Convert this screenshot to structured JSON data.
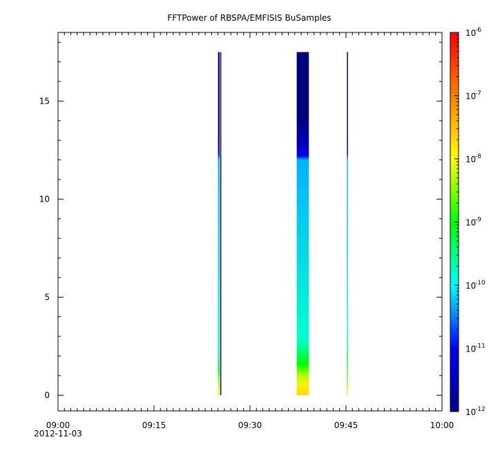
{
  "chart_data": {
    "type": "heatmap",
    "title": "FFTPower of RBSPA/EMFISIS  BuSamples",
    "xlabel": "",
    "ylabel": "",
    "x_axis": {
      "range_minutes": [
        0,
        60
      ],
      "ticks": [
        {
          "minute": 0,
          "label": "09:00"
        },
        {
          "minute": 15,
          "label": "09:15"
        },
        {
          "minute": 30,
          "label": "09:30"
        },
        {
          "minute": 45,
          "label": "09:45"
        },
        {
          "minute": 60,
          "label": "10:00"
        }
      ],
      "date_label": "2012-11-03"
    },
    "y_axis": {
      "range": [
        -0.8,
        18.5
      ],
      "ticks": [
        0,
        5,
        10,
        15
      ]
    },
    "colorbar": {
      "scale": "log",
      "range": [
        1e-12,
        1e-06
      ],
      "tick_labels": [
        {
          "exp": -12,
          "base": "10",
          "power": "-12"
        },
        {
          "exp": -11,
          "base": "10",
          "power": "-11"
        },
        {
          "exp": -10,
          "base": "10",
          "power": "-10"
        },
        {
          "exp": -9,
          "base": "10",
          "power": "-9"
        },
        {
          "exp": -8,
          "base": "10",
          "power": "-8"
        },
        {
          "exp": -7,
          "base": "10",
          "power": "-7"
        },
        {
          "exp": -6,
          "base": "10",
          "power": "-6"
        }
      ],
      "colormap": [
        "#00007f",
        "#0000ff",
        "#00ffff",
        "#00ff00",
        "#ffff00",
        "#ff7f00",
        "#ff0000"
      ]
    },
    "data_intervals": [
      {
        "start_minute": 25.0,
        "end_minute": 25.25,
        "y_max": 17.5,
        "profile": [
          {
            "y": 0.0,
            "log_power": -8.0
          },
          {
            "y": 0.6,
            "log_power": -8.3
          },
          {
            "y": 1.2,
            "log_power": -9.0
          },
          {
            "y": 2.5,
            "log_power": -9.7
          },
          {
            "y": 12.0,
            "log_power": -10.3
          },
          {
            "y": 12.3,
            "log_power": -11.3
          },
          {
            "y": 13.0,
            "log_power": -12.0
          },
          {
            "y": 17.5,
            "log_power": -12.0
          }
        ]
      },
      {
        "start_minute": 25.35,
        "end_minute": 25.5,
        "y_max": 17.5,
        "profile": [
          {
            "y": 0.0,
            "log_power": -12.0
          },
          {
            "y": 17.5,
            "log_power": -12.0
          }
        ]
      },
      {
        "start_minute": 37.3,
        "end_minute": 39.2,
        "y_max": 17.5,
        "profile": [
          {
            "y": 0.0,
            "log_power": -7.7
          },
          {
            "y": 0.5,
            "log_power": -7.9
          },
          {
            "y": 1.0,
            "log_power": -8.3
          },
          {
            "y": 1.6,
            "log_power": -9.0
          },
          {
            "y": 2.8,
            "log_power": -9.8
          },
          {
            "y": 12.0,
            "log_power": -10.3
          },
          {
            "y": 12.2,
            "log_power": -11.2
          },
          {
            "y": 13.0,
            "log_power": -11.6
          },
          {
            "y": 14.0,
            "log_power": -12.0
          },
          {
            "y": 17.5,
            "log_power": -12.0
          }
        ]
      },
      {
        "start_minute": 45.15,
        "end_minute": 45.3,
        "y_max": 17.5,
        "profile": [
          {
            "y": 0.0,
            "log_power": -8.0
          },
          {
            "y": 0.7,
            "log_power": -8.5
          },
          {
            "y": 1.8,
            "log_power": -9.3
          },
          {
            "y": 3.0,
            "log_power": -9.8
          },
          {
            "y": 12.0,
            "log_power": -10.3
          },
          {
            "y": 12.3,
            "log_power": -11.4
          },
          {
            "y": 13.0,
            "log_power": -12.0
          },
          {
            "y": 17.5,
            "log_power": -12.0
          }
        ]
      }
    ]
  }
}
